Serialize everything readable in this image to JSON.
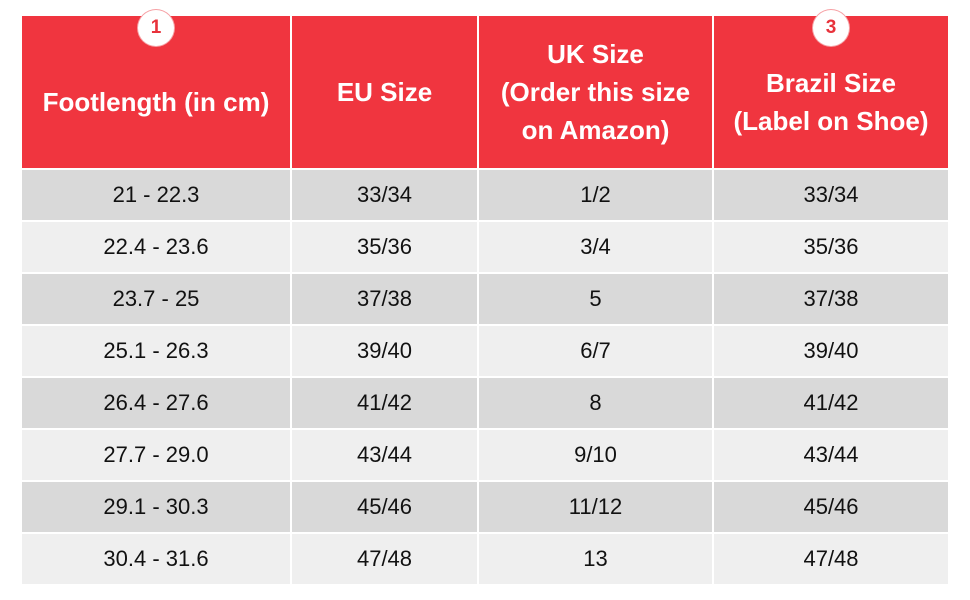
{
  "header": [
    {
      "badge": "1",
      "lines": [
        "Footlength (in cm)"
      ]
    },
    {
      "lines": [
        "EU Size"
      ]
    },
    {
      "lines": [
        "UK Size",
        "(Order this size",
        "on Amazon)"
      ]
    },
    {
      "badge": "3",
      "lines": [
        "Brazil Size",
        "(Label on Shoe)"
      ]
    }
  ],
  "table": {
    "rows": [
      [
        "21 - 22.3",
        "33/34",
        "1/2",
        "33/34"
      ],
      [
        "22.4 - 23.6",
        "35/36",
        "3/4",
        "35/36"
      ],
      [
        "23.7 - 25",
        "37/38",
        "5",
        "37/38"
      ],
      [
        "25.1 - 26.3",
        "39/40",
        "6/7",
        "39/40"
      ],
      [
        "26.4 - 27.6",
        "41/42",
        "8",
        "41/42"
      ],
      [
        "27.7 - 29.0",
        "43/44",
        "9/10",
        "43/44"
      ],
      [
        "29.1 - 30.3",
        "45/46",
        "11/12",
        "45/46"
      ],
      [
        "30.4 - 31.6",
        "47/48",
        "13",
        "47/48"
      ]
    ]
  }
}
